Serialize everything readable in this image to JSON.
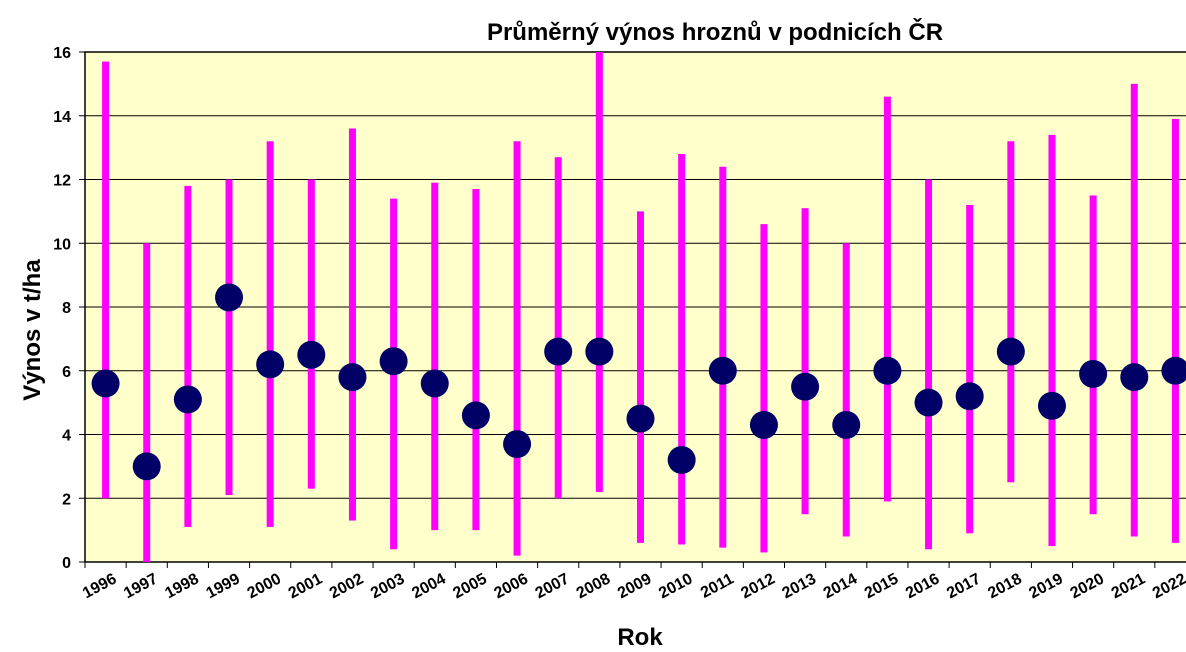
{
  "chart_data": {
    "type": "dot_range",
    "title": "Průměrný výnos hroznů v podnicích ČR",
    "x_label": "Rok",
    "y_label": "Výnos v t/ha",
    "categories": [
      "1996",
      "1997",
      "1998",
      "1999",
      "2000",
      "2001",
      "2002",
      "2003",
      "2004",
      "2005",
      "2006",
      "2007",
      "2008",
      "2009",
      "2010",
      "2011",
      "2012",
      "2013",
      "2014",
      "2015",
      "2016",
      "2017",
      "2018",
      "2019",
      "2020",
      "2021",
      "2022"
    ],
    "values": [
      5.6,
      3.0,
      5.1,
      8.3,
      6.2,
      6.5,
      5.8,
      6.3,
      5.6,
      4.6,
      3.7,
      6.6,
      6.6,
      4.5,
      3.2,
      6.0,
      4.3,
      5.5,
      4.3,
      6.0,
      5.0,
      5.2,
      6.6,
      4.9,
      5.9,
      5.8,
      6.0
    ],
    "lows": [
      2.0,
      0,
      1.1,
      2.1,
      1.1,
      2.3,
      1.3,
      0.4,
      1.0,
      1.0,
      0.2,
      2.0,
      2.2,
      0.6,
      0.55,
      0.45,
      0.3,
      1.5,
      0.8,
      1.9,
      0.4,
      0.9,
      2.5,
      0.5,
      1.5,
      0.8,
      0.6
    ],
    "highs": [
      15.7,
      10.0,
      11.8,
      12.0,
      13.2,
      12.0,
      13.6,
      11.4,
      11.9,
      11.7,
      13.2,
      12.7,
      16,
      11.0,
      12.8,
      12.4,
      10.6,
      11.1,
      10.0,
      14.6,
      12.0,
      11.2,
      13.2,
      13.4,
      11.5,
      15.0,
      13.9
    ],
    "color": "#000066",
    "range_color": "#ff00ff",
    "background": "#ffffcc",
    "ylim": [
      0,
      16
    ],
    "yticks": [
      0,
      2,
      4,
      6,
      8,
      10,
      12,
      14,
      16
    ],
    "grid": true
  }
}
